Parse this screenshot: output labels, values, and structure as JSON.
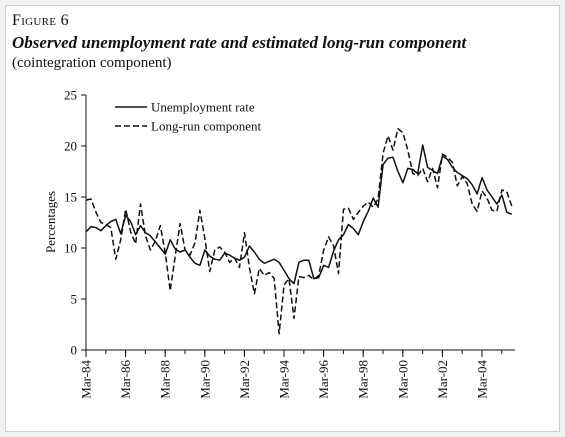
{
  "figure": {
    "label": "Figure 6",
    "title": "Observed unemployment rate and estimated long-run component",
    "subtitle": "(cointegration component)"
  },
  "chart_data": {
    "type": "line",
    "ylabel": "Percentages",
    "xlabel": "",
    "ylim": [
      0,
      25
    ],
    "yticks": [
      0,
      5,
      10,
      15,
      20,
      25
    ],
    "xlim": [
      1984.167,
      2005.833
    ],
    "xticks": [
      {
        "label": "Mar-84",
        "x": 1984.167
      },
      {
        "label": "Mar-86",
        "x": 1986.167
      },
      {
        "label": "Mar-88",
        "x": 1988.167
      },
      {
        "label": "Mar-90",
        "x": 1990.167
      },
      {
        "label": "Mar-92",
        "x": 1992.167
      },
      {
        "label": "Mar-94",
        "x": 1994.167
      },
      {
        "label": "Mar-96",
        "x": 1996.167
      },
      {
        "label": "Mar-98",
        "x": 1998.167
      },
      {
        "label": "Mar-00",
        "x": 2000.167
      },
      {
        "label": "Mar-02",
        "x": 2002.167
      },
      {
        "label": "Mar-04",
        "x": 2004.167
      }
    ],
    "legend_position": "top-left",
    "grid": false,
    "series": [
      {
        "name": "Unemployment rate",
        "style": "solid",
        "color": "#111111",
        "x": [
          1984.17,
          1984.42,
          1984.67,
          1984.92,
          1985.17,
          1985.42,
          1985.67,
          1985.92,
          1986.17,
          1986.42,
          1986.67,
          1986.92,
          1987.17,
          1987.42,
          1987.67,
          1987.92,
          1988.17,
          1988.42,
          1988.67,
          1988.92,
          1989.17,
          1989.42,
          1989.67,
          1989.92,
          1990.17,
          1990.42,
          1990.67,
          1990.92,
          1991.17,
          1991.42,
          1991.67,
          1991.92,
          1992.17,
          1992.42,
          1992.67,
          1992.92,
          1993.17,
          1993.42,
          1993.67,
          1993.92,
          1994.17,
          1994.42,
          1994.67,
          1994.92,
          1995.17,
          1995.42,
          1995.67,
          1995.92,
          1996.17,
          1996.42,
          1996.67,
          1996.92,
          1997.17,
          1997.42,
          1997.67,
          1997.92,
          1998.17,
          1998.42,
          1998.67,
          1998.92,
          1999.17,
          1999.42,
          1999.67,
          1999.92,
          2000.17,
          2000.42,
          2000.67,
          2000.92,
          2001.17,
          2001.42,
          2001.67,
          2001.92,
          2002.17,
          2002.42,
          2002.67,
          2002.92,
          2003.17,
          2003.42,
          2003.67,
          2003.92,
          2004.17,
          2004.42,
          2004.67,
          2004.92,
          2005.17,
          2005.42,
          2005.67
        ],
        "values": [
          11.6,
          12.1,
          12.0,
          11.7,
          12.2,
          12.6,
          12.8,
          11.4,
          13.2,
          12.6,
          11.3,
          12.2,
          11.5,
          11.2,
          10.6,
          10.0,
          9.4,
          10.8,
          9.9,
          9.6,
          9.8,
          9.1,
          8.5,
          8.3,
          9.8,
          9.2,
          8.9,
          8.8,
          9.5,
          9.3,
          9.0,
          8.8,
          9.1,
          10.2,
          9.6,
          8.9,
          8.5,
          8.7,
          8.9,
          8.6,
          7.8,
          7.0,
          6.5,
          8.6,
          8.8,
          8.8,
          7.0,
          7.1,
          8.3,
          8.1,
          9.7,
          10.8,
          11.3,
          12.3,
          11.9,
          11.3,
          12.6,
          13.6,
          14.9,
          14.0,
          18.2,
          18.8,
          18.9,
          17.5,
          16.4,
          17.8,
          17.7,
          17.3,
          20.1,
          17.9,
          17.6,
          17.3,
          19.0,
          18.7,
          17.9,
          17.4,
          17.1,
          16.8,
          16.2,
          15.3,
          16.9,
          15.7,
          15.0,
          14.3,
          15.2,
          13.5,
          13.3
        ]
      },
      {
        "name": "Long-run component",
        "style": "dashed",
        "color": "#111111",
        "x": [
          1984.17,
          1984.42,
          1984.67,
          1984.92,
          1985.17,
          1985.42,
          1985.67,
          1985.92,
          1986.17,
          1986.42,
          1986.67,
          1986.92,
          1987.17,
          1987.42,
          1987.67,
          1987.92,
          1988.17,
          1988.42,
          1988.67,
          1988.92,
          1989.17,
          1989.42,
          1989.67,
          1989.92,
          1990.17,
          1990.42,
          1990.67,
          1990.92,
          1991.17,
          1991.42,
          1991.67,
          1991.92,
          1992.17,
          1992.42,
          1992.67,
          1992.92,
          1993.17,
          1993.42,
          1993.67,
          1993.92,
          1994.17,
          1994.42,
          1994.67,
          1994.92,
          1995.17,
          1995.42,
          1995.67,
          1995.92,
          1996.17,
          1996.42,
          1996.67,
          1996.92,
          1997.17,
          1997.42,
          1997.67,
          1997.92,
          1998.17,
          1998.42,
          1998.67,
          1998.92,
          1999.17,
          1999.42,
          1999.67,
          1999.92,
          2000.17,
          2000.42,
          2000.67,
          2000.92,
          2001.17,
          2001.42,
          2001.67,
          2001.92,
          2002.17,
          2002.42,
          2002.67,
          2002.92,
          2003.17,
          2003.42,
          2003.67,
          2003.92,
          2004.17,
          2004.42,
          2004.67,
          2004.92,
          2005.17,
          2005.42,
          2005.67
        ],
        "values": [
          14.7,
          14.8,
          13.5,
          12.5,
          12.3,
          12.0,
          8.9,
          10.8,
          13.8,
          11.6,
          10.4,
          14.3,
          11.2,
          9.8,
          10.7,
          12.2,
          9.5,
          5.8,
          9.2,
          12.4,
          9.8,
          9.3,
          10.5,
          13.7,
          10.9,
          7.7,
          9.8,
          10.1,
          9.6,
          8.6,
          9.0,
          8.1,
          11.5,
          8.1,
          5.5,
          8.0,
          7.3,
          7.6,
          7.0,
          1.6,
          6.4,
          7.0,
          3.1,
          7.2,
          7.1,
          7.3,
          6.9,
          7.3,
          9.8,
          11.1,
          10.2,
          7.5,
          13.8,
          13.9,
          12.8,
          13.5,
          14.1,
          14.5,
          14.0,
          14.8,
          19.3,
          21.0,
          19.6,
          21.7,
          21.3,
          19.6,
          17.3,
          17.1,
          17.8,
          16.5,
          17.8,
          15.9,
          19.2,
          18.9,
          18.4,
          16.1,
          17.0,
          16.3,
          14.3,
          13.6,
          15.6,
          14.9,
          13.7,
          13.6,
          15.7,
          15.5,
          14.1
        ]
      }
    ]
  }
}
